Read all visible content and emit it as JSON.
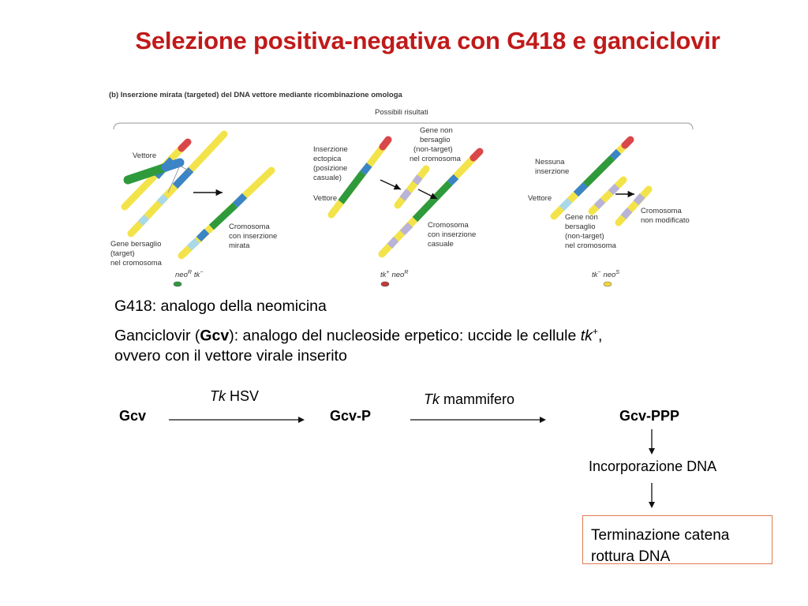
{
  "title": "Selezione positiva-negativa con G418 e ganciclovir",
  "figure": {
    "panel_label": "(b) Inserzione mirata (targeted) del DNA vettore mediante ricombinazione omologa",
    "outcomes_header": "Possibili risultati",
    "panel1": {
      "vector_label": "Vettore",
      "target_gene_label": [
        "Gene bersaglio",
        "(target)",
        "nel cromosoma"
      ],
      "result_label": [
        "Cromosoma",
        "con inserzione",
        "mirata"
      ],
      "genotype": "neo",
      "genotype_sup": "R",
      "genotype2": "tk",
      "genotype2_sup": "−",
      "cell_color": "#2e9a3c"
    },
    "panel2": {
      "insertion_label": [
        "Inserzione",
        "ectopica",
        "(posizione",
        "casuale)"
      ],
      "vector_label": "Vettore",
      "nontarget_label": [
        "Gene non",
        "bersaglio",
        "(non-target)",
        "nel cromosoma"
      ],
      "result_label": [
        "Cromosoma",
        "con inserzione",
        "casuale"
      ],
      "genotype": "tk",
      "genotype_sup": "+",
      "genotype2": "neo",
      "genotype2_sup": "R",
      "cell_color": "#c33a3a"
    },
    "panel3": {
      "no_insertion_label": [
        "Nessuna",
        "inserzione"
      ],
      "vector_label": "Vettore",
      "nontarget_label": [
        "Gene non",
        "bersaglio",
        "(non-target)",
        "nel cromosoma"
      ],
      "result_label": [
        "Cromosoma",
        "non modificato"
      ],
      "genotype": "tk",
      "genotype_sup": "−",
      "genotype2": "neo",
      "genotype2_sup": "S",
      "cell_color": "#f1d33b"
    }
  },
  "description": {
    "line1": "G418: analogo della neomicina",
    "line2_pre": "Ganciclovir (",
    "line2_bold": "Gcv",
    "line2_mid": "): analogo del nucleoside erpetico: uccide le cellule ",
    "line2_italic": "tk",
    "line2_sup": "+",
    "line2_end": ",",
    "line3": "ovvero con il vettore virale inserito"
  },
  "reaction": {
    "node1": "Gcv",
    "node2": "Gcv-P",
    "node3": "Gcv-PPP",
    "enzyme1_italic": "Tk",
    "enzyme1_rest": " HSV",
    "enzyme2_italic": "Tk",
    "enzyme2_rest": " mammifero",
    "step1": "Incorporazione DNA",
    "result_line1": "Terminazione catena",
    "result_line2": "rottura DNA"
  },
  "colors": {
    "title": "#c01a1a",
    "box_border": "#e07a4f",
    "chrom_yellow": "#f3e34a",
    "chrom_green": "#3aa04a",
    "chrom_blue": "#3b84c6",
    "chrom_lightblue": "#a9d8e8",
    "chrom_red": "#d9474a",
    "chrom_lavender": "#b9b3d6"
  }
}
